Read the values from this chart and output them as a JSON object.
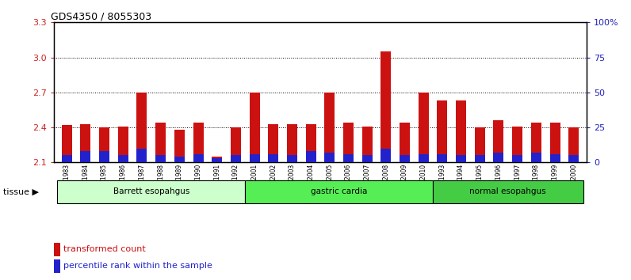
{
  "title": "GDS4350 / 8055303",
  "samples": [
    "GSM851983",
    "GSM851984",
    "GSM851985",
    "GSM851986",
    "GSM851987",
    "GSM851988",
    "GSM851989",
    "GSM851990",
    "GSM851991",
    "GSM851992",
    "GSM852001",
    "GSM852002",
    "GSM852003",
    "GSM852004",
    "GSM852005",
    "GSM852006",
    "GSM852007",
    "GSM852008",
    "GSM852009",
    "GSM852010",
    "GSM851993",
    "GSM851994",
    "GSM851995",
    "GSM851996",
    "GSM851997",
    "GSM851998",
    "GSM851999",
    "GSM852000"
  ],
  "transformed_count": [
    2.42,
    2.43,
    2.4,
    2.41,
    2.7,
    2.44,
    2.38,
    2.44,
    2.15,
    2.4,
    2.7,
    2.43,
    2.43,
    2.43,
    2.7,
    2.44,
    2.41,
    3.05,
    2.44,
    2.7,
    2.63,
    2.63,
    2.4,
    2.46,
    2.41,
    2.44,
    2.44,
    2.4
  ],
  "percentile_rank": [
    5,
    8,
    8,
    5,
    10,
    5,
    4,
    6,
    3,
    5,
    6,
    6,
    5,
    8,
    7,
    6,
    5,
    10,
    5,
    6,
    6,
    5,
    5,
    7,
    5,
    7,
    6,
    5
  ],
  "groups": [
    {
      "label": "Barrett esopahgus",
      "start": 0,
      "end": 10,
      "color": "#ccffcc"
    },
    {
      "label": "gastric cardia",
      "start": 10,
      "end": 20,
      "color": "#55ee55"
    },
    {
      "label": "normal esopahgus",
      "start": 20,
      "end": 28,
      "color": "#44cc44"
    }
  ],
  "ylim_left": [
    2.1,
    3.3
  ],
  "ylim_right": [
    0,
    100
  ],
  "yticks_left": [
    2.1,
    2.4,
    2.7,
    3.0,
    3.3
  ],
  "yticks_right": [
    0,
    25,
    50,
    75,
    100
  ],
  "bar_color_red": "#cc1111",
  "bar_color_blue": "#2222cc",
  "bar_width": 0.55,
  "bg_color": "#ffffff",
  "grid_color": "#000000",
  "axis_left_color": "#cc2222",
  "axis_right_color": "#2222bb",
  "dotted_lines": [
    2.4,
    2.7,
    3.0
  ]
}
